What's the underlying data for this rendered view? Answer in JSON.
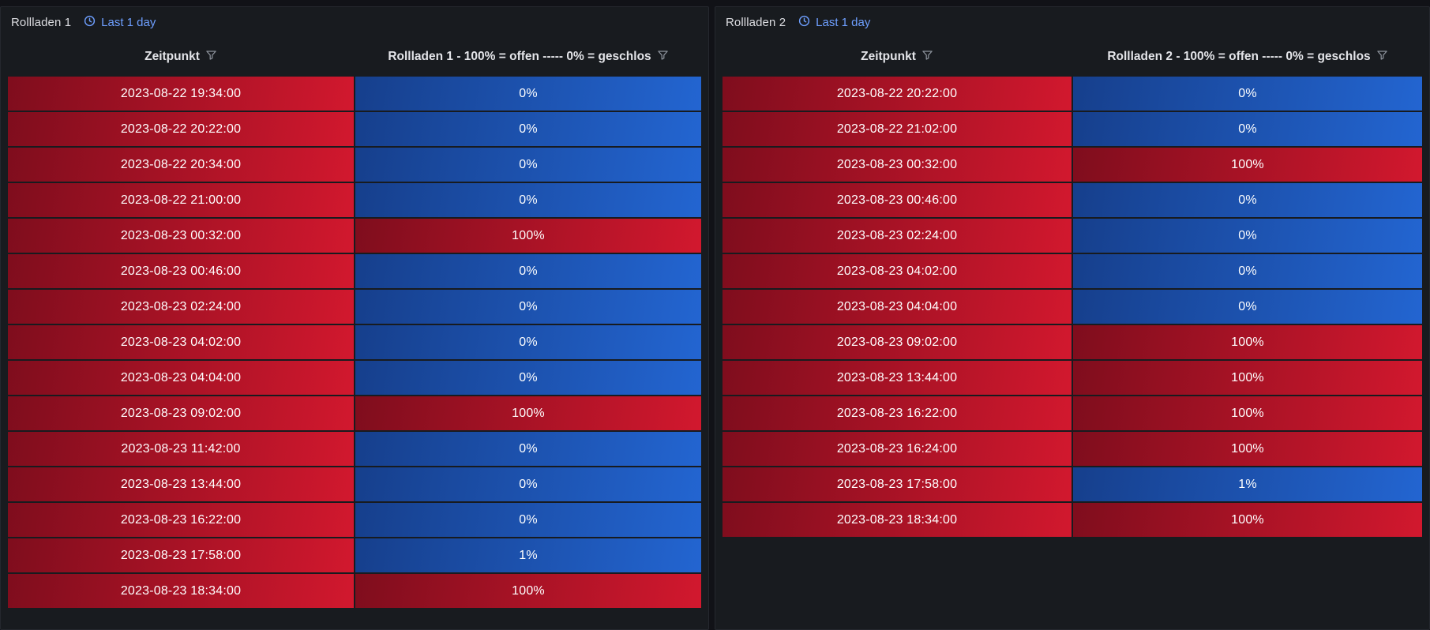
{
  "colors": {
    "dashboard_bg": "#111217",
    "panel_bg": "#181b1f",
    "panel_border": "#25282e",
    "time_override_blue": "#6e9fff",
    "cell_text": "#ffffff",
    "red_gradient_start": "#7f0d1d",
    "red_gradient_end": "#d2182e",
    "blue_gradient_start": "#163f8c",
    "blue_gradient_end": "#2365d1",
    "timestamp_cell_color": "red"
  },
  "icons": {
    "clock": "clock-icon",
    "filter": "filter-funnel-icon"
  },
  "panels": [
    {
      "title": "Rollladen 1",
      "time_override": "Last 1 day",
      "columns": [
        {
          "label": "Zeitpunkt"
        },
        {
          "label": "Rollladen 1 - 100% = offen ----- 0% = geschlos"
        }
      ],
      "rows": [
        {
          "zeitpunkt": "2023-08-22 19:34:00",
          "value": "0%",
          "color": "blue"
        },
        {
          "zeitpunkt": "2023-08-22 20:22:00",
          "value": "0%",
          "color": "blue"
        },
        {
          "zeitpunkt": "2023-08-22 20:34:00",
          "value": "0%",
          "color": "blue"
        },
        {
          "zeitpunkt": "2023-08-22 21:00:00",
          "value": "0%",
          "color": "blue"
        },
        {
          "zeitpunkt": "2023-08-23 00:32:00",
          "value": "100%",
          "color": "red"
        },
        {
          "zeitpunkt": "2023-08-23 00:46:00",
          "value": "0%",
          "color": "blue"
        },
        {
          "zeitpunkt": "2023-08-23 02:24:00",
          "value": "0%",
          "color": "blue"
        },
        {
          "zeitpunkt": "2023-08-23 04:02:00",
          "value": "0%",
          "color": "blue"
        },
        {
          "zeitpunkt": "2023-08-23 04:04:00",
          "value": "0%",
          "color": "blue"
        },
        {
          "zeitpunkt": "2023-08-23 09:02:00",
          "value": "100%",
          "color": "red"
        },
        {
          "zeitpunkt": "2023-08-23 11:42:00",
          "value": "0%",
          "color": "blue"
        },
        {
          "zeitpunkt": "2023-08-23 13:44:00",
          "value": "0%",
          "color": "blue"
        },
        {
          "zeitpunkt": "2023-08-23 16:22:00",
          "value": "0%",
          "color": "blue"
        },
        {
          "zeitpunkt": "2023-08-23 17:58:00",
          "value": "1%",
          "color": "blue"
        },
        {
          "zeitpunkt": "2023-08-23 18:34:00",
          "value": "100%",
          "color": "red"
        }
      ]
    },
    {
      "title": "Rollladen 2",
      "time_override": "Last 1 day",
      "columns": [
        {
          "label": "Zeitpunkt"
        },
        {
          "label": "Rollladen 2 - 100% = offen ----- 0% = geschlos"
        }
      ],
      "rows": [
        {
          "zeitpunkt": "2023-08-22 20:22:00",
          "value": "0%",
          "color": "blue"
        },
        {
          "zeitpunkt": "2023-08-22 21:02:00",
          "value": "0%",
          "color": "blue"
        },
        {
          "zeitpunkt": "2023-08-23 00:32:00",
          "value": "100%",
          "color": "red"
        },
        {
          "zeitpunkt": "2023-08-23 00:46:00",
          "value": "0%",
          "color": "blue"
        },
        {
          "zeitpunkt": "2023-08-23 02:24:00",
          "value": "0%",
          "color": "blue"
        },
        {
          "zeitpunkt": "2023-08-23 04:02:00",
          "value": "0%",
          "color": "blue"
        },
        {
          "zeitpunkt": "2023-08-23 04:04:00",
          "value": "0%",
          "color": "blue"
        },
        {
          "zeitpunkt": "2023-08-23 09:02:00",
          "value": "100%",
          "color": "red"
        },
        {
          "zeitpunkt": "2023-08-23 13:44:00",
          "value": "100%",
          "color": "red"
        },
        {
          "zeitpunkt": "2023-08-23 16:22:00",
          "value": "100%",
          "color": "red"
        },
        {
          "zeitpunkt": "2023-08-23 16:24:00",
          "value": "100%",
          "color": "red"
        },
        {
          "zeitpunkt": "2023-08-23 17:58:00",
          "value": "1%",
          "color": "blue"
        },
        {
          "zeitpunkt": "2023-08-23 18:34:00",
          "value": "100%",
          "color": "red"
        }
      ]
    }
  ]
}
